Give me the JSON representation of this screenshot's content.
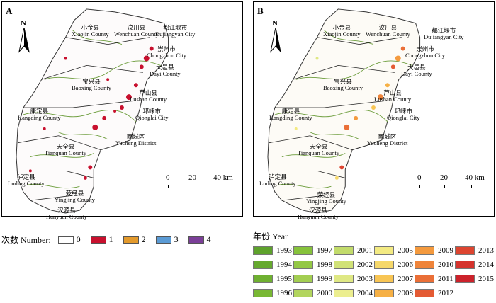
{
  "panels": [
    {
      "id": "A",
      "label": "A"
    },
    {
      "id": "B",
      "label": "B"
    }
  ],
  "north_label": "N",
  "scale": {
    "ticks": [
      "0",
      "20",
      "40 km"
    ]
  },
  "places": [
    {
      "cn": "小金县",
      "en": "Xiaojin County"
    },
    {
      "cn": "汶川县",
      "en": "Wenchuan County"
    },
    {
      "cn": "都江堰市",
      "en": "Dujiangyan City"
    },
    {
      "cn": "崇州市",
      "en": "Chongzhou City"
    },
    {
      "cn": "大邑县",
      "en": "Dayi County"
    },
    {
      "cn": "宝兴县",
      "en": "Baoxing County"
    },
    {
      "cn": "芦山县",
      "en": "Lushan County"
    },
    {
      "cn": "邛崃市",
      "en": "Qionglai City"
    },
    {
      "cn": "康定县",
      "en": "Kangding County"
    },
    {
      "cn": "雨城区",
      "en": "Yucheng District"
    },
    {
      "cn": "天全县",
      "en": "Tianquan County"
    },
    {
      "cn": "泸定县",
      "en": "Luding County"
    },
    {
      "cn": "荥经县",
      "en": "Yingjing County"
    },
    {
      "cn": "汉源县",
      "en": "Hanyuan County"
    }
  ],
  "legend_a": {
    "title": "次数 Number:",
    "items": [
      {
        "label": "0",
        "color": "#ffffff"
      },
      {
        "label": "1",
        "color": "#c8102e"
      },
      {
        "label": "2",
        "color": "#e39a2c"
      },
      {
        "label": "3",
        "color": "#5b9bd5"
      },
      {
        "label": "4",
        "color": "#7b3f98"
      }
    ]
  },
  "legend_b": {
    "title": "年份 Year",
    "items": [
      {
        "label": "1993",
        "color": "#5ea22c"
      },
      {
        "label": "1994",
        "color": "#66a92e"
      },
      {
        "label": "1995",
        "color": "#6fb031"
      },
      {
        "label": "1996",
        "color": "#79b834"
      },
      {
        "label": "1997",
        "color": "#86c23b"
      },
      {
        "label": "1998",
        "color": "#94c845"
      },
      {
        "label": "1999",
        "color": "#a3ce52"
      },
      {
        "label": "2000",
        "color": "#b2d55e"
      },
      {
        "label": "2001",
        "color": "#c2db6b"
      },
      {
        "label": "2002",
        "color": "#d1e277"
      },
      {
        "label": "2003",
        "color": "#dfe884"
      },
      {
        "label": "2004",
        "color": "#ecee8f"
      },
      {
        "label": "2005",
        "color": "#f3ea82"
      },
      {
        "label": "2006",
        "color": "#f6d86a"
      },
      {
        "label": "2007",
        "color": "#f8c554"
      },
      {
        "label": "2008",
        "color": "#f6b045"
      },
      {
        "label": "2009",
        "color": "#f49a3e"
      },
      {
        "label": "2010",
        "color": "#ef843a"
      },
      {
        "label": "2011",
        "color": "#ea6f37"
      },
      {
        "label": "2012",
        "color": "#e45a33"
      },
      {
        "label": "2013",
        "color": "#dd4530"
      },
      {
        "label": "2014",
        "color": "#d5332d"
      },
      {
        "label": "2015",
        "color": "#cc222b"
      }
    ]
  }
}
